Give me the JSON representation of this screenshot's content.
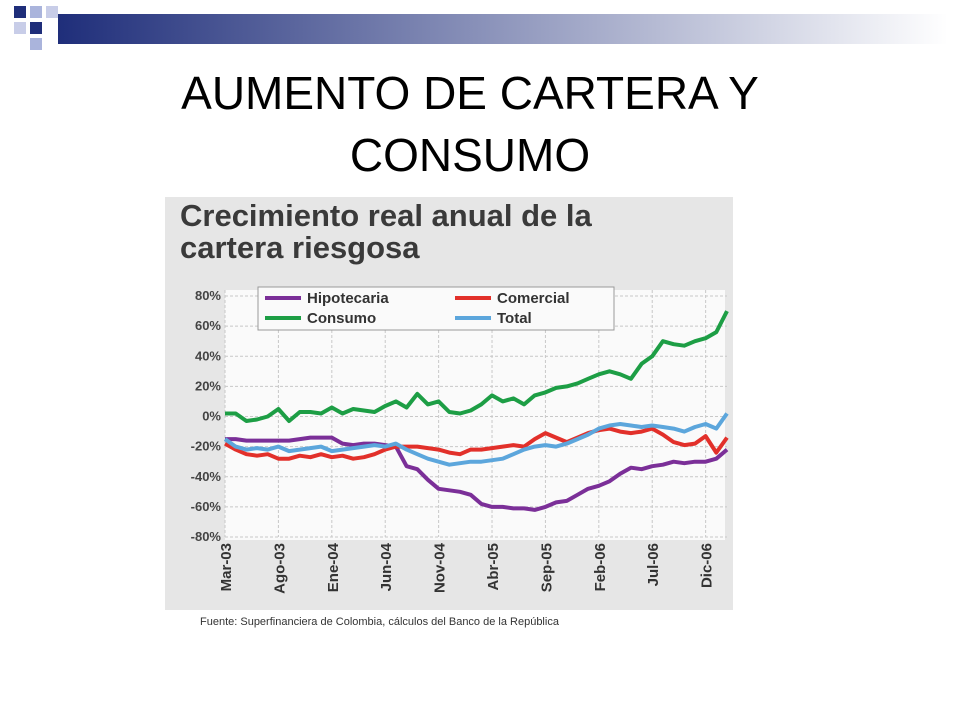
{
  "slide_title": "AUMENTO DE CARTERA Y CONSUMO",
  "chart_data": {
    "type": "line",
    "title": "Crecimiento real anual de la cartera riesgosa",
    "source": "Fuente: Superfinanciera de Colombia, cálculos del Banco de la República",
    "categories": [
      "Mar-03",
      null,
      null,
      null,
      null,
      "Ago-03",
      null,
      null,
      null,
      null,
      "Ene-04",
      null,
      null,
      null,
      null,
      "Jun-04",
      null,
      null,
      null,
      null,
      "Nov-04",
      null,
      null,
      null,
      null,
      "Abr-05",
      null,
      null,
      null,
      null,
      "Sep-05",
      null,
      null,
      null,
      null,
      "Feb-06",
      null,
      null,
      null,
      null,
      "Jul-06",
      null,
      null,
      null,
      null,
      "Dic-06",
      null,
      null
    ],
    "ylim": [
      -80,
      80
    ],
    "yticks": [
      {
        "value": -80,
        "label": "-80%"
      },
      {
        "value": -60,
        "label": "-60%"
      },
      {
        "value": -40,
        "label": "-40%"
      },
      {
        "value": -20,
        "label": "-20%"
      },
      {
        "value": 0,
        "label": "0%"
      },
      {
        "value": 20,
        "label": "20%"
      },
      {
        "value": 40,
        "label": "40%"
      },
      {
        "value": 60,
        "label": "60%"
      },
      {
        "value": 80,
        "label": "80%"
      }
    ],
    "grid": true,
    "series": [
      {
        "name": "Hipotecaria",
        "color": "#7b2f98",
        "values": [
          -15,
          -15,
          -16,
          -16,
          -16,
          -16,
          -16,
          -15,
          -14,
          -14,
          -14,
          -18,
          -19,
          -18,
          -18,
          -19,
          -20,
          -33,
          -35,
          -42,
          -48,
          -49,
          -50,
          -52,
          -58,
          -60,
          -60,
          -61,
          -61,
          -62,
          -60,
          -57,
          -56,
          -52,
          -48,
          -46,
          -43,
          -38,
          -34,
          -35,
          -33,
          -32,
          -30,
          -31,
          -30,
          -30,
          -28,
          -22
        ]
      },
      {
        "name": "Comercial",
        "color": "#e2302a",
        "values": [
          -18,
          -22,
          -25,
          -26,
          -25,
          -28,
          -28,
          -26,
          -27,
          -25,
          -27,
          -26,
          -28,
          -27,
          -25,
          -22,
          -20,
          -20,
          -20,
          -21,
          -22,
          -24,
          -25,
          -22,
          -22,
          -21,
          -20,
          -19,
          -20,
          -15,
          -11,
          -14,
          -17,
          -14,
          -11,
          -9,
          -8,
          -10,
          -11,
          -10,
          -8,
          -12,
          -17,
          -19,
          -18,
          -13,
          -24,
          -14
        ]
      },
      {
        "name": "Consumo",
        "color": "#1d9e45",
        "values": [
          2,
          2,
          -3,
          -2,
          0,
          5,
          -3,
          3,
          3,
          2,
          6,
          2,
          5,
          4,
          3,
          7,
          10,
          6,
          15,
          8,
          10,
          3,
          2,
          4,
          8,
          14,
          10,
          12,
          8,
          14,
          16,
          19,
          20,
          22,
          25,
          28,
          30,
          28,
          25,
          35,
          40,
          50,
          48,
          47,
          50,
          52,
          56,
          70
        ]
      },
      {
        "name": "Total",
        "color": "#5ca6dc",
        "values": [
          -15,
          -20,
          -22,
          -21,
          -22,
          -20,
          -23,
          -22,
          -21,
          -20,
          -23,
          -22,
          -21,
          -20,
          -19,
          -20,
          -18,
          -22,
          -25,
          -28,
          -30,
          -32,
          -31,
          -30,
          -30,
          -29,
          -28,
          -25,
          -22,
          -20,
          -19,
          -20,
          -18,
          -15,
          -12,
          -8,
          -6,
          -5,
          -6,
          -7,
          -6,
          -7,
          -8,
          -10,
          -7,
          -5,
          -8,
          2
        ]
      }
    ]
  }
}
